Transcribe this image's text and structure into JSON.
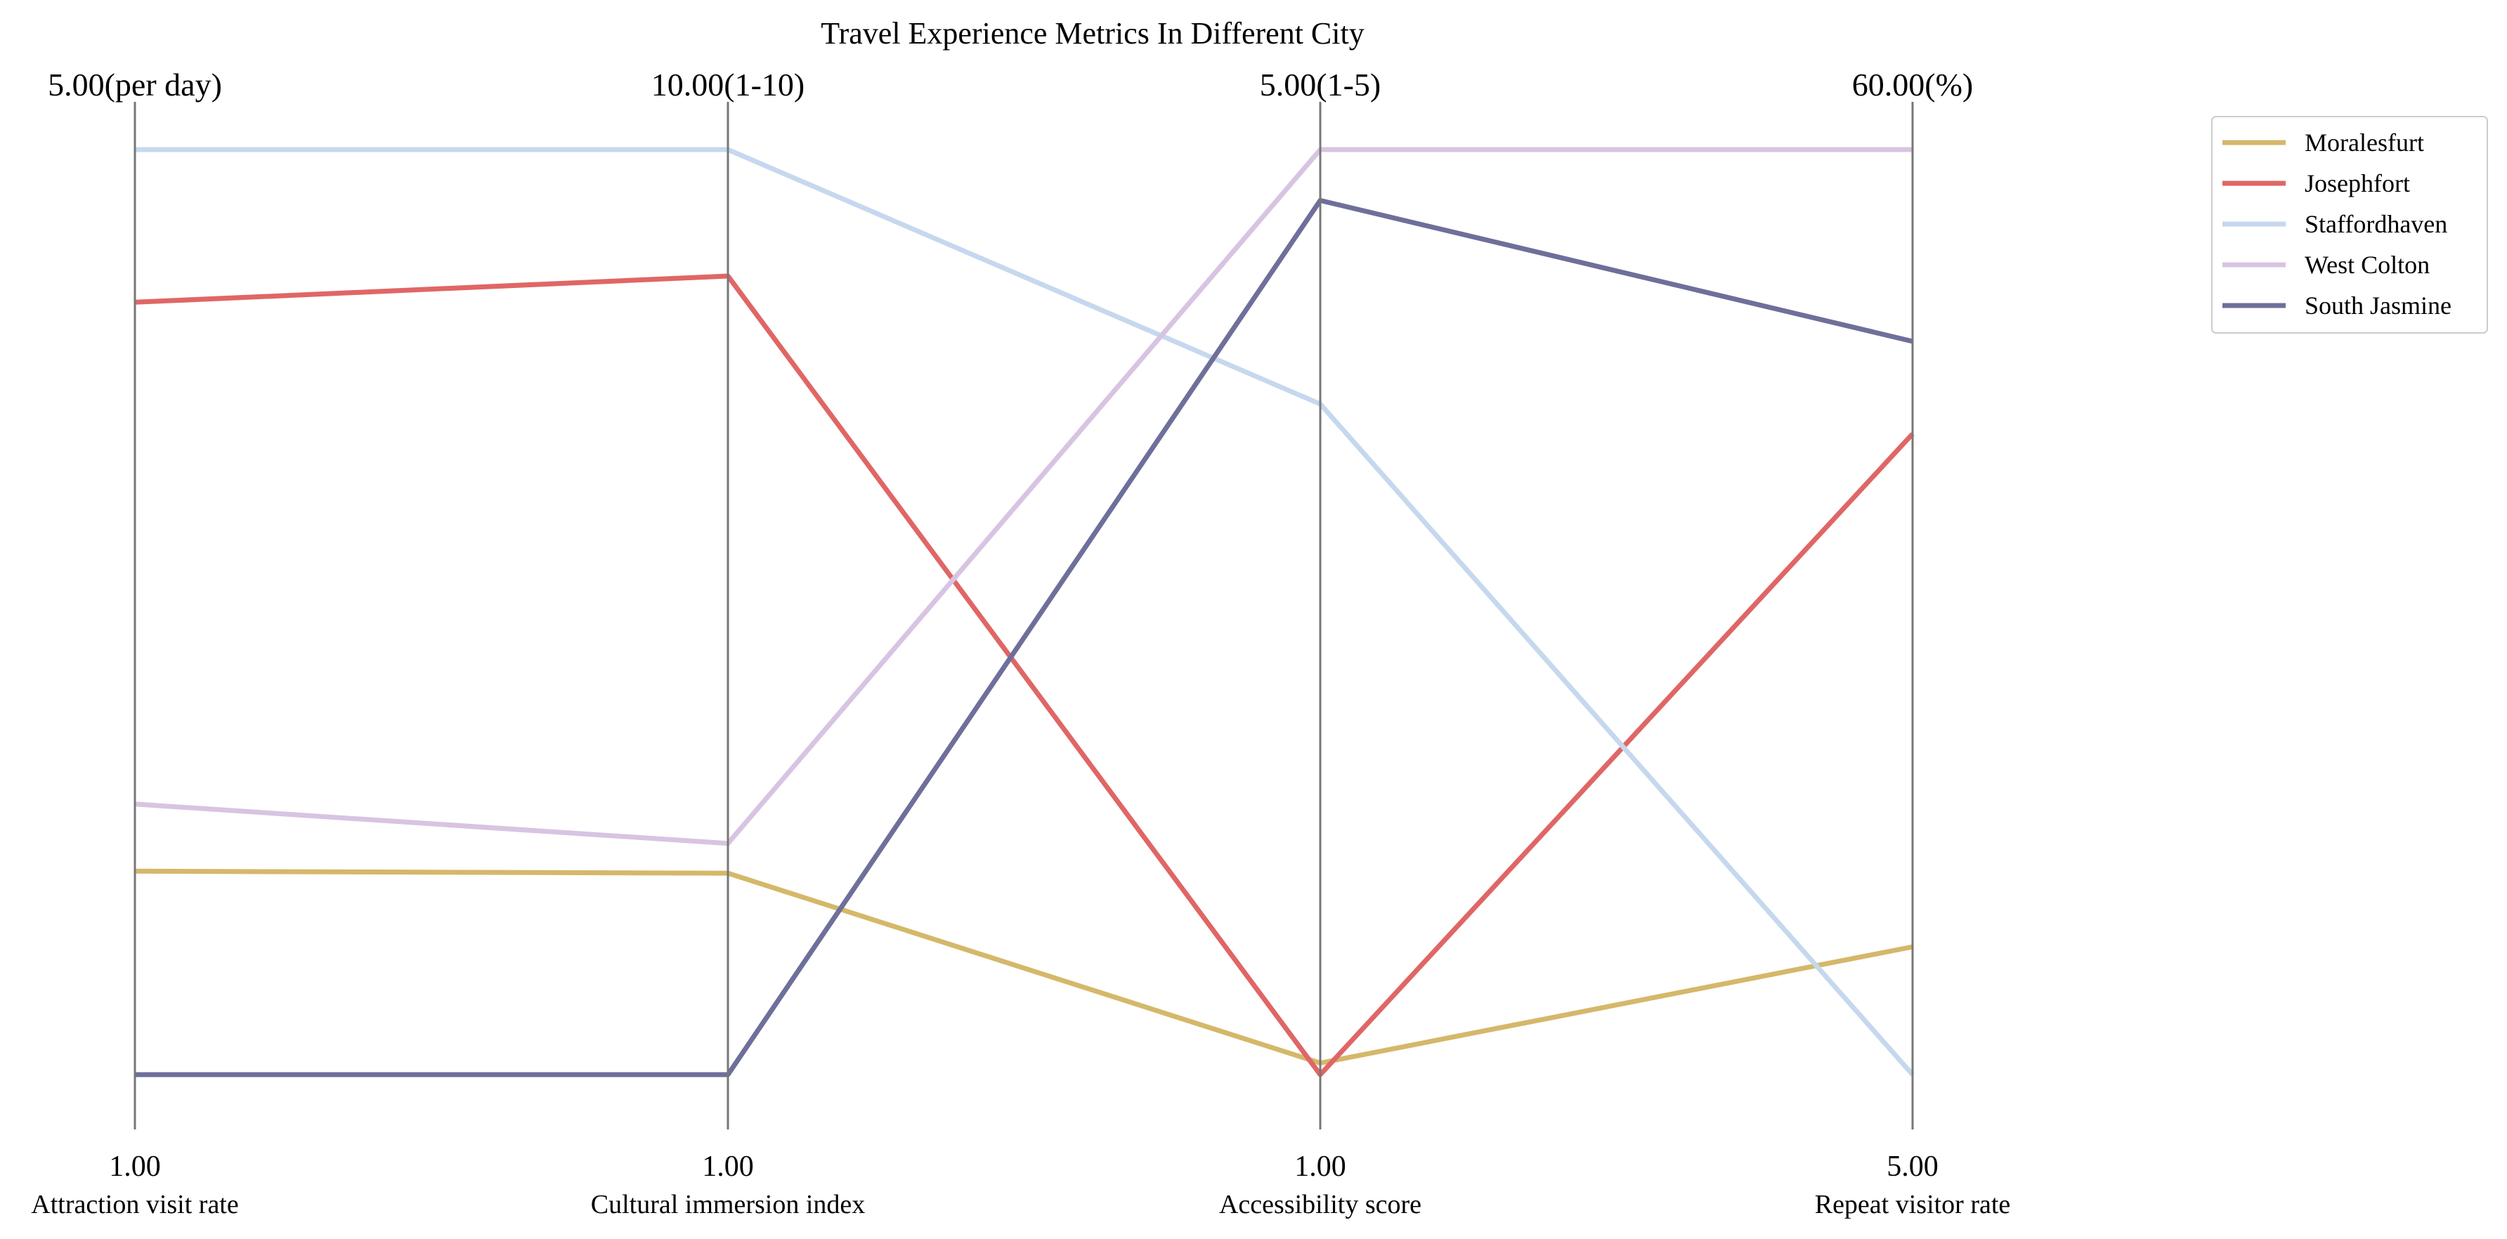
{
  "chart_data": {
    "type": "parallel-coordinates",
    "title": "Travel Experience Metrics In Different City",
    "axes": [
      {
        "name": "Attraction visit rate",
        "min": 1,
        "max": 5,
        "min_label": "1.00",
        "max_label": "5.00(per day)"
      },
      {
        "name": "Cultural immersion index",
        "min": 1,
        "max": 10,
        "min_label": "1.00",
        "max_label": "10.00(1-10)"
      },
      {
        "name": "Accessibility score",
        "min": 1,
        "max": 5,
        "min_label": "1.00",
        "max_label": "5.00(1-5)"
      },
      {
        "name": "Repeat visitor rate",
        "min": 5,
        "max": 60,
        "min_label": "5.00",
        "max_label": "60.00(%)"
      }
    ],
    "series": [
      {
        "name": "Moralesfurt",
        "color": "#d4b86a",
        "values": [
          1.88,
          2.96,
          1.05,
          12.6
        ]
      },
      {
        "name": "Josephfort",
        "color": "#e06666",
        "values": [
          4.34,
          8.77,
          1.0,
          43.1
        ]
      },
      {
        "name": "Staffordhaven",
        "color": "#c5d8ee",
        "values": [
          5.0,
          10.0,
          3.9,
          5.0
        ]
      },
      {
        "name": "West Colton",
        "color": "#d8c4e2",
        "values": [
          2.17,
          3.25,
          5.0,
          60.0
        ]
      },
      {
        "name": "South Jasmine",
        "color": "#6e6f9a",
        "values": [
          1.0,
          1.0,
          4.78,
          48.6
        ]
      }
    ],
    "legend_position": "top-right",
    "grid": false
  }
}
